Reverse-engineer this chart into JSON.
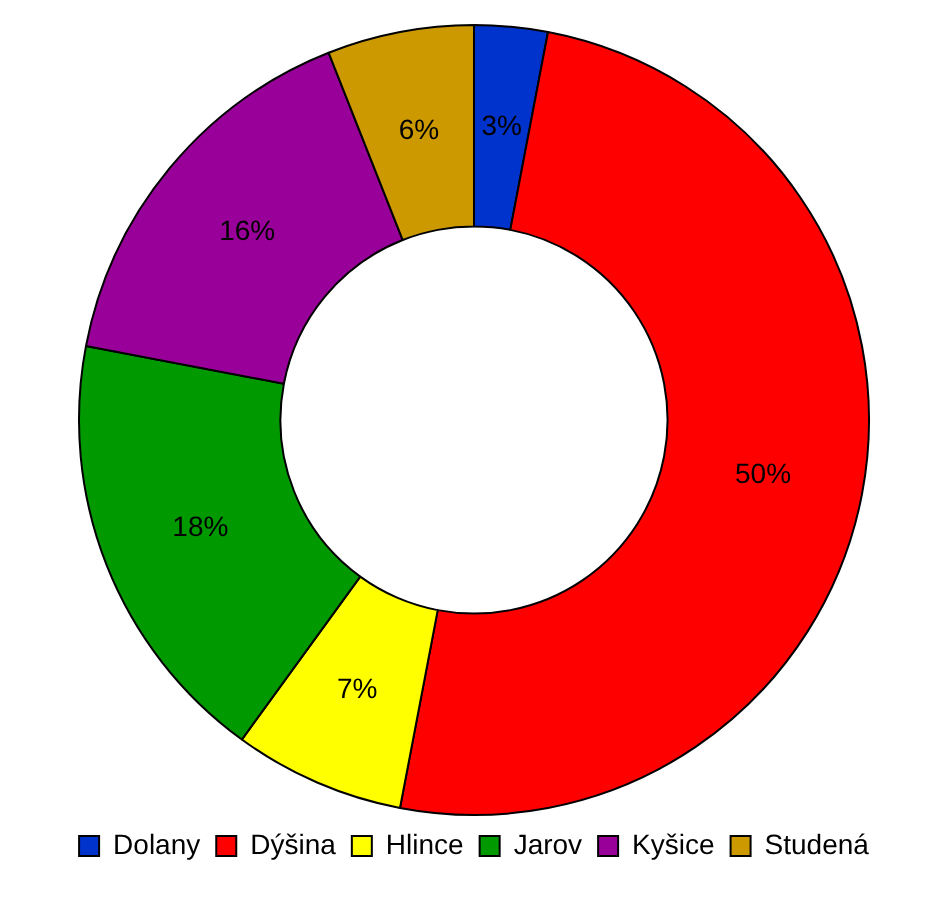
{
  "chart_data": {
    "type": "donut",
    "categories": [
      "Dolany",
      "Dýšina",
      "Hlince",
      "Jarov",
      "Kyšice",
      "Studená"
    ],
    "values": [
      3,
      50,
      7,
      18,
      16,
      6
    ],
    "colors": [
      "#0033cc",
      "#ff0000",
      "#ffff00",
      "#009900",
      "#990099",
      "#cc9900"
    ],
    "value_labels": [
      "3%",
      "50%",
      "7%",
      "18%",
      "16%",
      "6%"
    ],
    "legend": "bottom"
  }
}
